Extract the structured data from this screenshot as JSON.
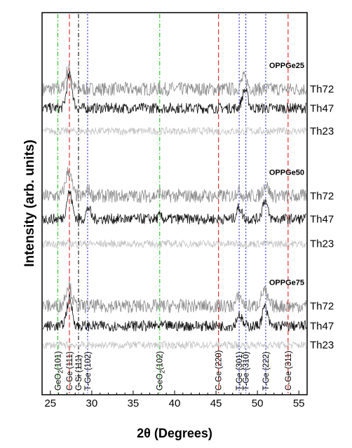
{
  "chart_data": {
    "type": "line",
    "xlabel": "2θ (Degrees)",
    "ylabel": "Intensity (arb. units)",
    "xlim": [
      24,
      56
    ],
    "x_ticks": [
      25,
      30,
      35,
      40,
      45,
      50,
      55
    ],
    "y_ticks": "none",
    "groups": [
      {
        "name": "OPPGe25",
        "series": [
          {
            "name": "Th72",
            "color": "#8c8c8c",
            "baseline": 0.8,
            "noise": 0.018,
            "peaks": [
              {
                "x": 27.2,
                "h": 0.055,
                "w": 0.55
              },
              {
                "x": 48.4,
                "h": 0.03,
                "w": 0.6
              }
            ]
          },
          {
            "name": "Th47",
            "color": "#111111",
            "baseline": 0.75,
            "noise": 0.014,
            "peaks": [
              {
                "x": 27.3,
                "h": 0.085,
                "w": 0.55
              },
              {
                "x": 48.5,
                "h": 0.048,
                "w": 0.55
              }
            ]
          },
          {
            "name": "Th23",
            "color": "#c4c4c4",
            "baseline": 0.69,
            "noise": 0.01,
            "peaks": []
          }
        ]
      },
      {
        "name": "OPPGe50",
        "series": [
          {
            "name": "Th72",
            "color": "#8c8c8c",
            "baseline": 0.52,
            "noise": 0.018,
            "peaks": [
              {
                "x": 27.2,
                "h": 0.065,
                "w": 0.6
              },
              {
                "x": 29.6,
                "h": 0.015,
                "w": 0.4
              },
              {
                "x": 38.2,
                "h": 0.01,
                "w": 0.3
              },
              {
                "x": 47.7,
                "h": 0.015,
                "w": 0.5
              },
              {
                "x": 51.0,
                "h": 0.03,
                "w": 0.55
              }
            ]
          },
          {
            "name": "Th47",
            "color": "#111111",
            "baseline": 0.46,
            "noise": 0.014,
            "peaks": [
              {
                "x": 27.3,
                "h": 0.07,
                "w": 0.55
              },
              {
                "x": 29.6,
                "h": 0.03,
                "w": 0.4
              },
              {
                "x": 38.2,
                "h": 0.008,
                "w": 0.3
              },
              {
                "x": 47.8,
                "h": 0.03,
                "w": 0.5
              },
              {
                "x": 50.9,
                "h": 0.05,
                "w": 0.5
              }
            ]
          },
          {
            "name": "Th23",
            "color": "#c4c4c4",
            "baseline": 0.395,
            "noise": 0.01,
            "peaks": []
          }
        ]
      },
      {
        "name": "OPPGe75",
        "series": [
          {
            "name": "Th72",
            "color": "#8c8c8c",
            "baseline": 0.232,
            "noise": 0.018,
            "peaks": [
              {
                "x": 27.2,
                "h": 0.055,
                "w": 0.6
              },
              {
                "x": 47.8,
                "h": 0.025,
                "w": 0.55
              },
              {
                "x": 50.8,
                "h": 0.04,
                "w": 0.6
              }
            ]
          },
          {
            "name": "Th47",
            "color": "#111111",
            "baseline": 0.18,
            "noise": 0.014,
            "peaks": [
              {
                "x": 27.3,
                "h": 0.07,
                "w": 0.55
              },
              {
                "x": 47.8,
                "h": 0.03,
                "w": 0.5
              },
              {
                "x": 50.9,
                "h": 0.05,
                "w": 0.5
              }
            ]
          },
          {
            "name": "Th23",
            "color": "#c4c4c4",
            "baseline": 0.13,
            "noise": 0.01,
            "peaks": []
          }
        ]
      }
    ],
    "reference_lines": [
      {
        "x": 25.9,
        "label": "GeO2(101)",
        "color": "#2bc92b",
        "style": "dashdot"
      },
      {
        "x": 27.3,
        "label": "C-Ge (111)",
        "color": "#e8302e",
        "style": "dashed"
      },
      {
        "x": 28.4,
        "label": "C-Si (111)",
        "color": "#222222",
        "style": "dashdot"
      },
      {
        "x": 29.5,
        "label": "T-Ge (102)",
        "color": "#3a3ad6",
        "style": "dotted"
      },
      {
        "x": 38.2,
        "label": "GeO2(102)",
        "color": "#2bc92b",
        "style": "dashdot"
      },
      {
        "x": 45.3,
        "label": "C-Ge (220)",
        "color": "#e8302e",
        "style": "dashed"
      },
      {
        "x": 47.8,
        "label": "T-Ge (301)",
        "color": "#3a3ad6",
        "style": "dotted"
      },
      {
        "x": 48.6,
        "label": "T-Ge (310)",
        "color": "#3a3ad6",
        "style": "dotted"
      },
      {
        "x": 51.0,
        "label": "T-Ge (222)",
        "color": "#3a3ad6",
        "style": "dotted"
      },
      {
        "x": 53.7,
        "label": "C-Ge (311)",
        "color": "#e8302e",
        "style": "dashed"
      }
    ]
  }
}
